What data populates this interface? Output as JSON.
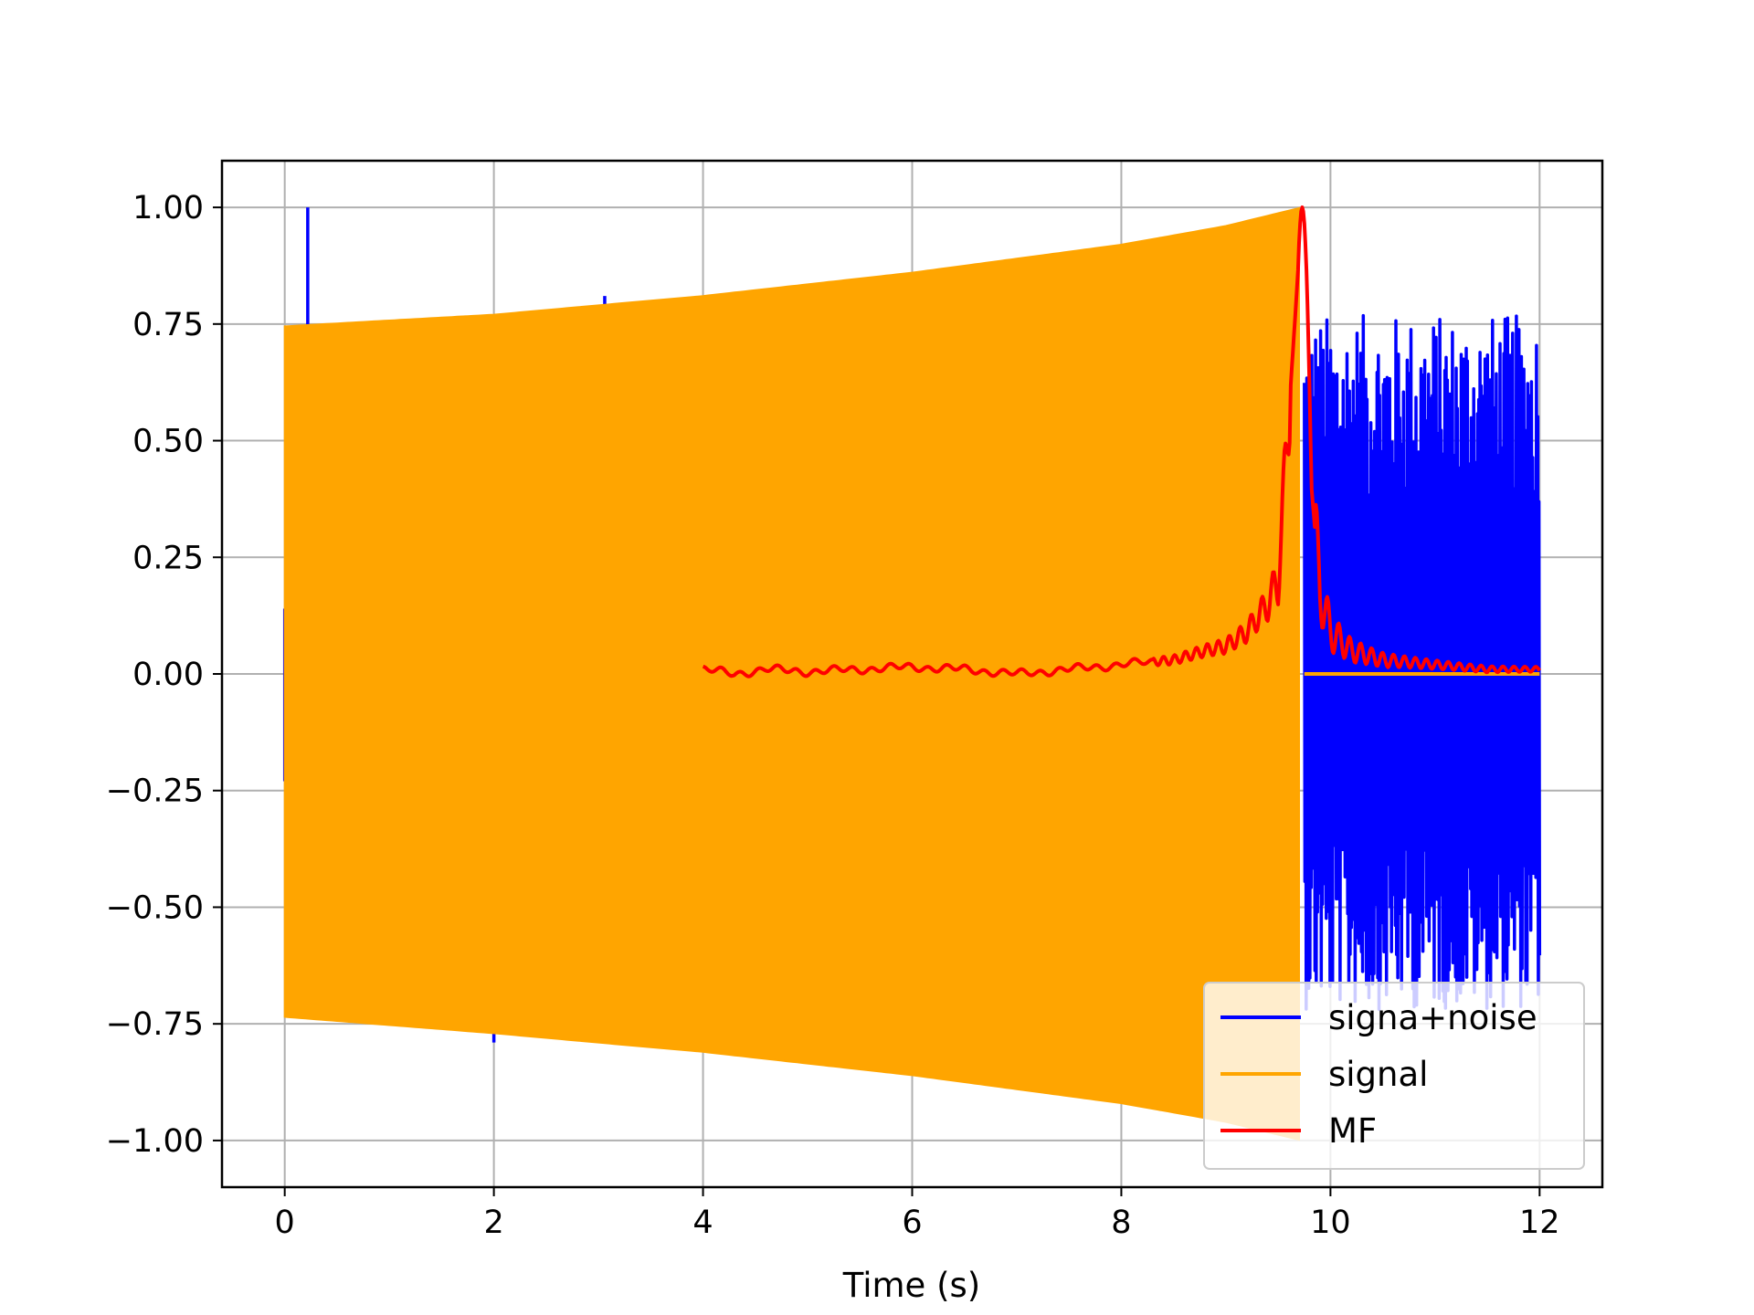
{
  "chart_data": {
    "type": "line",
    "title": "",
    "xlabel": "Time (s)",
    "ylabel": "",
    "xlim": [
      -0.6,
      12.6
    ],
    "ylim": [
      -1.1,
      1.1
    ],
    "grid": true,
    "legend_position": "lower-right",
    "x_ticks": [
      0,
      2,
      4,
      6,
      8,
      10,
      12
    ],
    "y_ticks": [
      -1.0,
      -0.75,
      -0.5,
      -0.25,
      0.0,
      0.25,
      0.5,
      0.75,
      1.0
    ],
    "x_tick_labels": [
      "0",
      "2",
      "4",
      "6",
      "8",
      "10",
      "12"
    ],
    "y_tick_labels": [
      "−1.00",
      "−0.75",
      "−0.50",
      "−0.25",
      "0.00",
      "0.25",
      "0.50",
      "0.75",
      "1.00"
    ],
    "series": [
      {
        "name": "signa+noise",
        "color": "#0000ff",
        "description_points": {
          "spikes": [
            {
              "x": 0.22,
              "y": 1.0
            },
            {
              "x": 3.06,
              "y": 0.81
            },
            {
              "x": 2.0,
              "y": -0.79
            }
          ],
          "noise_region": {
            "x_start": 9.75,
            "x_end": 12.0,
            "y_min": -0.72,
            "y_max": 0.77
          }
        }
      },
      {
        "name": "signal",
        "color": "#ffa500",
        "envelope": {
          "x": [
            0.0,
            2.0,
            4.0,
            6.0,
            8.0,
            9.0,
            9.73
          ],
          "upper": [
            0.745,
            0.77,
            0.81,
            0.86,
            0.92,
            0.96,
            1.0
          ],
          "lower": [
            -0.735,
            -0.77,
            -0.81,
            -0.86,
            -0.92,
            -0.96,
            -1.0
          ]
        },
        "flat_after": {
          "x_start": 9.75,
          "x_end": 12.0,
          "y": 0.0
        }
      },
      {
        "name": "MF",
        "color": "#ff0000",
        "x": [
          4.0,
          4.3,
          4.6,
          5.0,
          5.5,
          6.0,
          6.5,
          7.0,
          7.5,
          8.0,
          8.5,
          8.8,
          9.0,
          9.2,
          9.4,
          9.5,
          9.6,
          9.73,
          9.8,
          9.9,
          10.0,
          10.2,
          10.5,
          11.0,
          11.5,
          12.0
        ],
        "y": [
          0.01,
          0.0,
          0.01,
          0.005,
          0.01,
          0.015,
          0.01,
          0.0,
          0.01,
          0.02,
          0.03,
          0.05,
          0.06,
          0.09,
          0.15,
          0.2,
          0.55,
          1.0,
          0.45,
          0.18,
          0.09,
          0.05,
          0.03,
          0.02,
          0.01,
          0.01
        ]
      }
    ]
  }
}
